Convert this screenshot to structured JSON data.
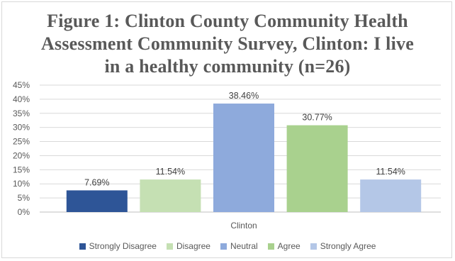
{
  "chart_data": {
    "type": "bar",
    "title_lines": [
      "Figure 1: Clinton County Community Health",
      "Assessment Community Survey, Clinton: I live",
      "in a healthy community (n=26)"
    ],
    "categories": [
      "Clinton"
    ],
    "series": [
      {
        "name": "Strongly Disagree",
        "values": [
          7.69
        ],
        "label": "7.69%",
        "color": "#2e5597"
      },
      {
        "name": "Disagree",
        "values": [
          11.54
        ],
        "label": "11.54%",
        "color": "#c5e0b3"
      },
      {
        "name": "Neutral",
        "values": [
          38.46
        ],
        "label": "38.46%",
        "color": "#8eaadc"
      },
      {
        "name": "Agree",
        "values": [
          30.77
        ],
        "label": "30.77%",
        "color": "#a9d18e"
      },
      {
        "name": "Strongly Agree",
        "values": [
          11.54
        ],
        "label": "11.54%",
        "color": "#b4c7e7"
      }
    ],
    "ylim": [
      0,
      45
    ],
    "yticks": [
      "0%",
      "5%",
      "10%",
      "15%",
      "20%",
      "25%",
      "30%",
      "35%",
      "40%",
      "45%"
    ],
    "y_unit": "percent",
    "grid": true,
    "legend_position": "bottom",
    "colors": {
      "grid": "#d9d9d9",
      "axis": "#bfbfbf",
      "text": "#595959"
    }
  }
}
